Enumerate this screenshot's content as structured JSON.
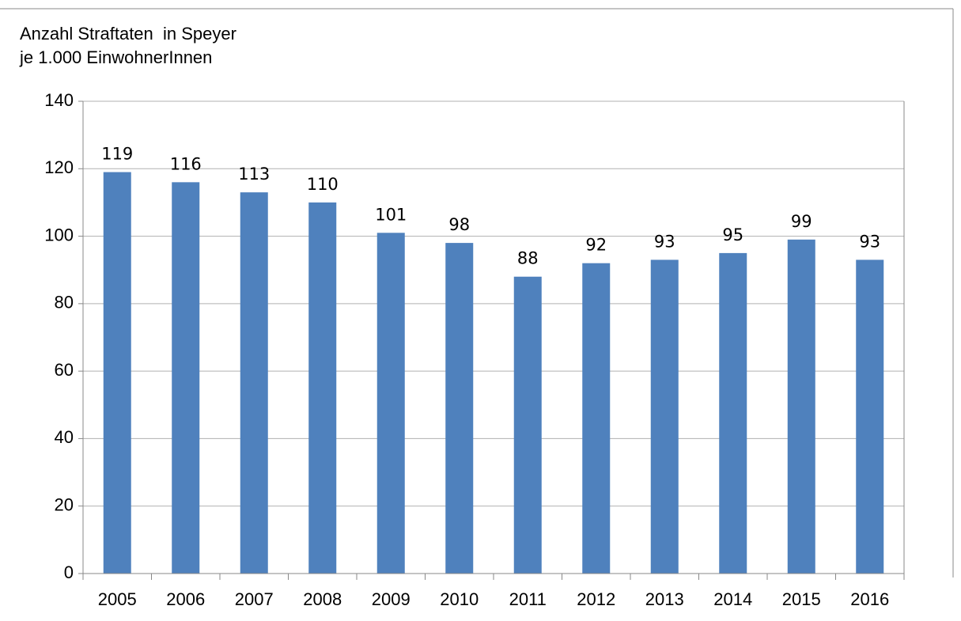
{
  "chart_data": {
    "type": "bar",
    "title": "Anzahl Straftaten  in Speyer",
    "subtitle": "je 1.000 EinwohnerInnen",
    "categories": [
      "2005",
      "2006",
      "2007",
      "2008",
      "2009",
      "2010",
      "2011",
      "2012",
      "2013",
      "2014",
      "2015",
      "2016"
    ],
    "values": [
      119,
      116,
      113,
      110,
      101,
      98,
      88,
      92,
      93,
      95,
      99,
      93
    ],
    "color": "#4f81bd",
    "ylim": [
      0,
      140
    ],
    "yticks": [
      0,
      20,
      40,
      60,
      80,
      100,
      120,
      140
    ],
    "grid": true
  }
}
